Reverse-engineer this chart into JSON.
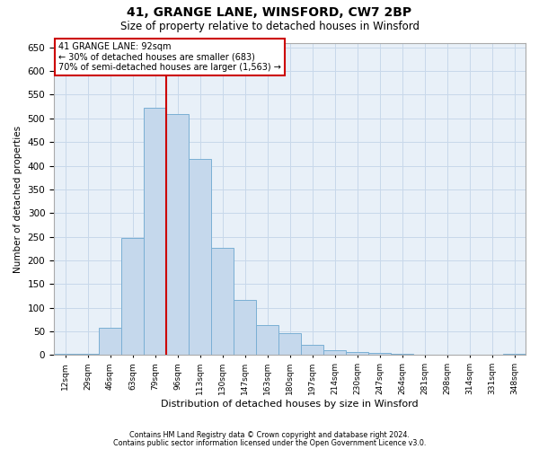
{
  "title_line1": "41, GRANGE LANE, WINSFORD, CW7 2BP",
  "title_line2": "Size of property relative to detached houses in Winsford",
  "xlabel": "Distribution of detached houses by size in Winsford",
  "ylabel": "Number of detached properties",
  "footnote1": "Contains HM Land Registry data © Crown copyright and database right 2024.",
  "footnote2": "Contains public sector information licensed under the Open Government Licence v3.0.",
  "property_line1": "41 GRANGE LANE: 92sqm",
  "property_line2": "← 30% of detached houses are smaller (683)",
  "property_line3": "70% of semi-detached houses are larger (1,563) →",
  "vline_category_index": 5,
  "categories": [
    "12sqm",
    "29sqm",
    "46sqm",
    "63sqm",
    "79sqm",
    "96sqm",
    "113sqm",
    "130sqm",
    "147sqm",
    "163sqm",
    "180sqm",
    "197sqm",
    "214sqm",
    "230sqm",
    "247sqm",
    "264sqm",
    "281sqm",
    "298sqm",
    "314sqm",
    "331sqm",
    "348sqm"
  ],
  "values": [
    2,
    2,
    58,
    247,
    522,
    510,
    415,
    226,
    117,
    63,
    46,
    21,
    10,
    7,
    5,
    2,
    1,
    0,
    1,
    0,
    2
  ],
  "bar_color": "#c5d8ec",
  "bar_edge_color": "#7aafd4",
  "vline_color": "#cc0000",
  "annotation_box_edgecolor": "#cc0000",
  "annotation_fill": "white",
  "grid_color": "#c8d8ea",
  "background_color": "#e8f0f8",
  "ylim": [
    0,
    660
  ],
  "yticks": [
    0,
    50,
    100,
    150,
    200,
    250,
    300,
    350,
    400,
    450,
    500,
    550,
    600,
    650
  ],
  "title1_fontsize": 10,
  "title2_fontsize": 8.5,
  "xlabel_fontsize": 8,
  "ylabel_fontsize": 7.5,
  "xtick_fontsize": 6.5,
  "ytick_fontsize": 7.5,
  "footnote_fontsize": 5.8,
  "annotation_fontsize": 7
}
